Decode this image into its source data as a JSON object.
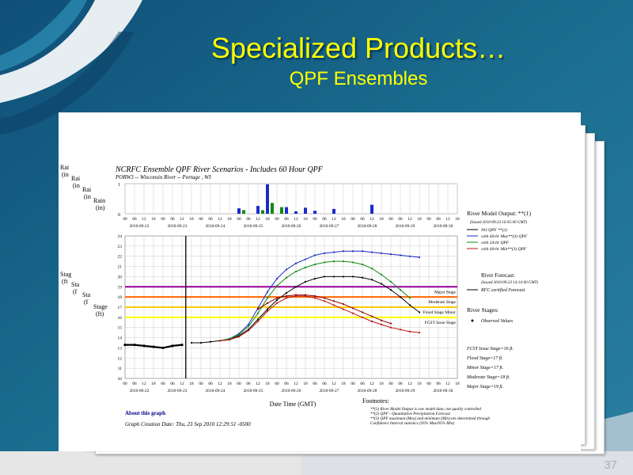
{
  "slide": {
    "title": "Specialized Products…",
    "subtitle": "QPF Ensembles",
    "page_number": "37"
  },
  "figure": {
    "title": "NCRFC Ensemble QPF River Scenarios - Includes 60 Hour QPF",
    "subtitle": "PORW3 -- Wisconsin River -- Portage , WI",
    "about_link": "About this graph",
    "creation": "Graph Creation Date: Thu, 23 Sep 2010 12:29:51 -0500",
    "x_label": "Date Time (GMT)",
    "stacked_rain_labels": [
      [
        "Rai",
        "(in"
      ],
      [
        "Rai",
        "(in"
      ],
      [
        "Rai",
        "(in"
      ]
    ],
    "stacked_stage_labels": [
      [
        "Stag",
        "(ft"
      ],
      [
        "Sta",
        "(f"
      ],
      [
        "Sta",
        "(f"
      ]
    ],
    "rain_label": [
      "Rain",
      "(in)"
    ],
    "stage_label": [
      "Stage",
      "(ft)"
    ],
    "footnotes": {
      "title": "Footnotes:",
      "lines": [
        "**(1) River Model Output is raw model data, not quality controlled",
        "**(2) QPF - Quantitative Precipitation Forecast",
        "**(3) QPF maximum (Max) and minimum (Min) are determined through",
        "Confidence Interval statistics (95% Max/05% Min)"
      ]
    },
    "legend": {
      "model_title": "River Model Output: **(1)",
      "model_issued": "(Issued 2010-09-23 16:05:00 GMT)",
      "model_items": [
        {
          "label": "NO QPF **(2)",
          "color": "#000000"
        },
        {
          "label": "with 60-hr Max**(3) QPF",
          "color": "#1c2bc8"
        },
        {
          "label": "with 24-hr QPF",
          "color": "#138a13"
        },
        {
          "label": "with 60-hr Min**(3) QPF",
          "color": "#b81414"
        }
      ],
      "forecast_title": "River Forecast:",
      "forecast_issued": "(Issued 2010-09-23 14:14:00 GMT)",
      "forecast_item": "RFC certified Forecast",
      "stages_title": "River Stages:",
      "stages_item": "Observed Values",
      "stage_info": [
        "FCST Issue Stage=16 ft.",
        "Flood Stage=17 ft.",
        "Minor Stage=17 ft.",
        "Moderate Stage=18 ft.",
        "Major Stage=19 ft."
      ]
    }
  },
  "colors": {
    "title": "#ffff00",
    "major": "#990099",
    "moderate": "#ff6600",
    "flood": "#ffcc00",
    "fcst_issue": "#ffff00",
    "rain_bar": "#1c2bc8",
    "rain_bar_alt": "#138a13"
  },
  "chart_data": [
    {
      "type": "bar",
      "title": "Rain (in)",
      "x_ticks": [
        "00",
        "06",
        "12",
        "18",
        "00",
        "06",
        "12",
        "18",
        "00",
        "06",
        "12",
        "18",
        "00",
        "06",
        "12",
        "18",
        "00",
        "06",
        "12",
        "18",
        "00",
        "06",
        "12",
        "18",
        "00",
        "06",
        "12",
        "18",
        "00",
        "06",
        "12",
        "18",
        "00",
        "06",
        "12",
        "18"
      ],
      "date_labels": [
        "2010-09-22",
        "2010-09-23",
        "2010-09-24",
        "2010-09-25",
        "2010-09-26",
        "2010-09-27",
        "2010-09-28",
        "2010-09-29",
        "2010-09-30"
      ],
      "ylim": [
        0,
        1
      ],
      "y_ticks": [
        "0",
        "1"
      ],
      "series": [
        {
          "name": "with 60-hr Max**(3) QPF",
          "points": [
            [
              12,
              0.18
            ],
            [
              14,
              0.26
            ],
            [
              15,
              0.98
            ],
            [
              17,
              0.22
            ],
            [
              18,
              0.08
            ],
            [
              19,
              0.2
            ],
            [
              20,
              0.1
            ],
            [
              22,
              0.16
            ],
            [
              26,
              0.3
            ]
          ]
        },
        {
          "name": "with 24-hr QPF",
          "points": [
            [
              12.5,
              0.12
            ],
            [
              14.5,
              0.12
            ],
            [
              15.5,
              0.36
            ],
            [
              16.5,
              0.22
            ]
          ]
        }
      ]
    },
    {
      "type": "line",
      "title": "Stage (ft)",
      "x_ticks": [
        "00",
        "06",
        "12",
        "18",
        "00",
        "06",
        "12",
        "18",
        "00",
        "06",
        "12",
        "18",
        "00",
        "06",
        "12",
        "18",
        "00",
        "06",
        "12",
        "18",
        "00",
        "06",
        "12",
        "18",
        "00",
        "06",
        "12",
        "18",
        "00",
        "06",
        "12",
        "18",
        "00",
        "06",
        "12",
        "18"
      ],
      "date_labels": [
        "2010-09-22",
        "2010-09-23",
        "2010-09-24",
        "2010-09-25",
        "2010-09-26",
        "2010-09-27",
        "2010-09-28",
        "2010-09-29",
        "2010-09-30"
      ],
      "ylim": [
        10,
        24
      ],
      "y_ticks": [
        "10",
        "11",
        "12",
        "13",
        "14",
        "15",
        "16",
        "17",
        "18",
        "19",
        "20",
        "21",
        "22",
        "23",
        "24"
      ],
      "reference_lines": [
        {
          "label": "Major Stage",
          "value": 19
        },
        {
          "label": "Moderate Stage",
          "value": 18
        },
        {
          "label": "Flood Stage Minor",
          "value": 17
        },
        {
          "label": "FCST Issue Stage",
          "value": 16
        }
      ],
      "series": [
        {
          "name": "Observed Values",
          "points": [
            [
              0,
              13.3
            ],
            [
              1,
              13.3
            ],
            [
              2,
              13.2
            ],
            [
              3,
              13.1
            ],
            [
              4,
              13.0
            ],
            [
              5,
              13.2
            ],
            [
              6,
              13.3
            ]
          ]
        },
        {
          "name": "NO QPF **(2)",
          "points": [
            [
              7,
              13.5
            ],
            [
              8,
              13.5
            ],
            [
              9,
              13.6
            ],
            [
              10,
              13.7
            ],
            [
              11,
              13.8
            ],
            [
              12,
              14.2
            ],
            [
              13,
              14.8
            ],
            [
              14,
              15.8
            ],
            [
              15,
              16.8
            ],
            [
              16,
              17.7
            ],
            [
              17,
              18.4
            ],
            [
              18,
              19.0
            ],
            [
              19,
              19.5
            ],
            [
              20,
              19.8
            ],
            [
              21,
              20.0
            ],
            [
              22,
              20.0
            ],
            [
              23,
              20.0
            ],
            [
              24,
              20.0
            ],
            [
              25,
              19.9
            ],
            [
              26,
              19.7
            ],
            [
              27,
              19.3
            ],
            [
              28,
              18.7
            ],
            [
              29,
              18.0
            ],
            [
              30,
              17.2
            ],
            [
              31,
              16.5
            ]
          ]
        },
        {
          "name": "with 60-hr Max**(3) QPF",
          "points": [
            [
              10,
              13.7
            ],
            [
              11,
              13.9
            ],
            [
              12,
              14.4
            ],
            [
              13,
              15.3
            ],
            [
              14,
              16.9
            ],
            [
              15,
              18.5
            ],
            [
              16,
              19.8
            ],
            [
              17,
              20.7
            ],
            [
              18,
              21.3
            ],
            [
              19,
              21.7
            ],
            [
              20,
              22.1
            ],
            [
              21,
              22.3
            ],
            [
              22,
              22.4
            ],
            [
              23,
              22.5
            ],
            [
              24,
              22.5
            ],
            [
              25,
              22.5
            ],
            [
              26,
              22.4
            ],
            [
              27,
              22.3
            ],
            [
              28,
              22.2
            ],
            [
              29,
              22.1
            ],
            [
              30,
              22.0
            ],
            [
              31,
              21.9
            ]
          ]
        },
        {
          "name": "with 24-hr QPF",
          "points": [
            [
              10,
              13.7
            ],
            [
              11,
              13.9
            ],
            [
              12,
              14.3
            ],
            [
              13,
              15.1
            ],
            [
              14,
              16.4
            ],
            [
              15,
              17.9
            ],
            [
              16,
              19.1
            ],
            [
              17,
              19.9
            ],
            [
              18,
              20.5
            ],
            [
              19,
              20.9
            ],
            [
              20,
              21.2
            ],
            [
              21,
              21.4
            ],
            [
              22,
              21.5
            ],
            [
              23,
              21.5
            ],
            [
              24,
              21.4
            ],
            [
              25,
              21.2
            ],
            [
              26,
              20.8
            ],
            [
              27,
              20.2
            ],
            [
              28,
              19.5
            ],
            [
              29,
              18.7
            ],
            [
              30,
              17.9
            ]
          ]
        },
        {
          "name": "with 60-hr Min**(3) QPF",
          "points": [
            [
              10,
              13.7
            ],
            [
              11,
              13.8
            ],
            [
              12,
              14.1
            ],
            [
              13,
              14.7
            ],
            [
              14,
              15.6
            ],
            [
              15,
              16.6
            ],
            [
              16,
              17.4
            ],
            [
              17,
              17.9
            ],
            [
              18,
              18.1
            ],
            [
              19,
              18.1
            ],
            [
              20,
              17.9
            ],
            [
              21,
              17.6
            ],
            [
              22,
              17.2
            ],
            [
              23,
              16.8
            ],
            [
              24,
              16.4
            ],
            [
              25,
              16.0
            ],
            [
              26,
              15.6
            ],
            [
              27,
              15.3
            ],
            [
              28,
              15.0
            ],
            [
              29,
              14.8
            ],
            [
              30,
              14.6
            ],
            [
              31,
              14.5
            ]
          ]
        },
        {
          "name": "RFC certified Forecast",
          "points": [
            [
              14,
              16.8
            ],
            [
              15,
              17.4
            ],
            [
              16,
              17.9
            ],
            [
              17,
              18.1
            ],
            [
              18,
              18.2
            ],
            [
              19,
              18.2
            ],
            [
              20,
              18.1
            ],
            [
              21,
              17.9
            ],
            [
              22,
              17.6
            ],
            [
              23,
              17.3
            ],
            [
              24,
              16.9
            ],
            [
              25,
              16.5
            ],
            [
              26,
              16.1
            ],
            [
              27,
              15.7
            ],
            [
              28,
              15.4
            ]
          ]
        }
      ]
    }
  ]
}
